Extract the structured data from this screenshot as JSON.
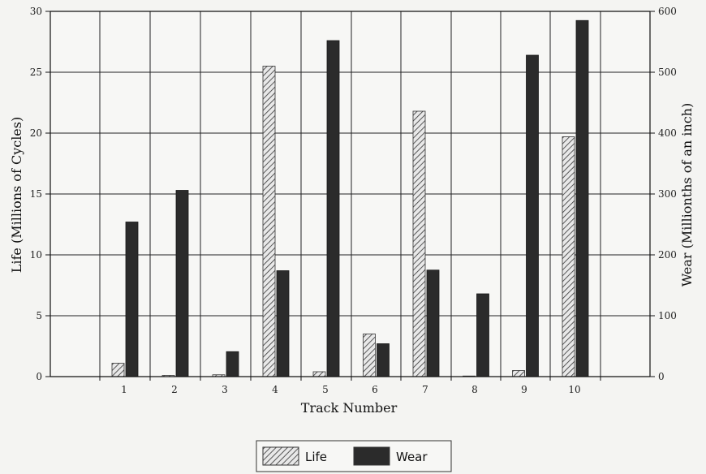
{
  "chart_data": {
    "type": "bar",
    "title": "",
    "xlabel": "Track Number",
    "ylabel_left": "Life (Millions of Cycles)",
    "ylabel_right": "Wear (Millionths of an inch)",
    "categories": [
      "1",
      "2",
      "3",
      "4",
      "5",
      "6",
      "7",
      "8",
      "9",
      "10"
    ],
    "series": [
      {
        "name": "Life",
        "axis": "left",
        "pattern": "hatched",
        "values": [
          1.1,
          0.1,
          0.15,
          25.5,
          0.4,
          3.5,
          21.8,
          0.05,
          0.5,
          19.7
        ]
      },
      {
        "name": "Wear",
        "axis": "right",
        "color": "#2b2b2b",
        "values": [
          254,
          306,
          41,
          174,
          552,
          54,
          175,
          136,
          528,
          585
        ]
      }
    ],
    "ylim_left": [
      0,
      30
    ],
    "ylim_right": [
      0,
      600
    ],
    "yticks_left": [
      "0",
      "5",
      "10",
      "15",
      "20",
      "25",
      "30"
    ],
    "yticks_right": [
      "0",
      "100",
      "200",
      "300",
      "400",
      "500",
      "600"
    ],
    "grid": true,
    "legend_position": "bottom-center"
  }
}
